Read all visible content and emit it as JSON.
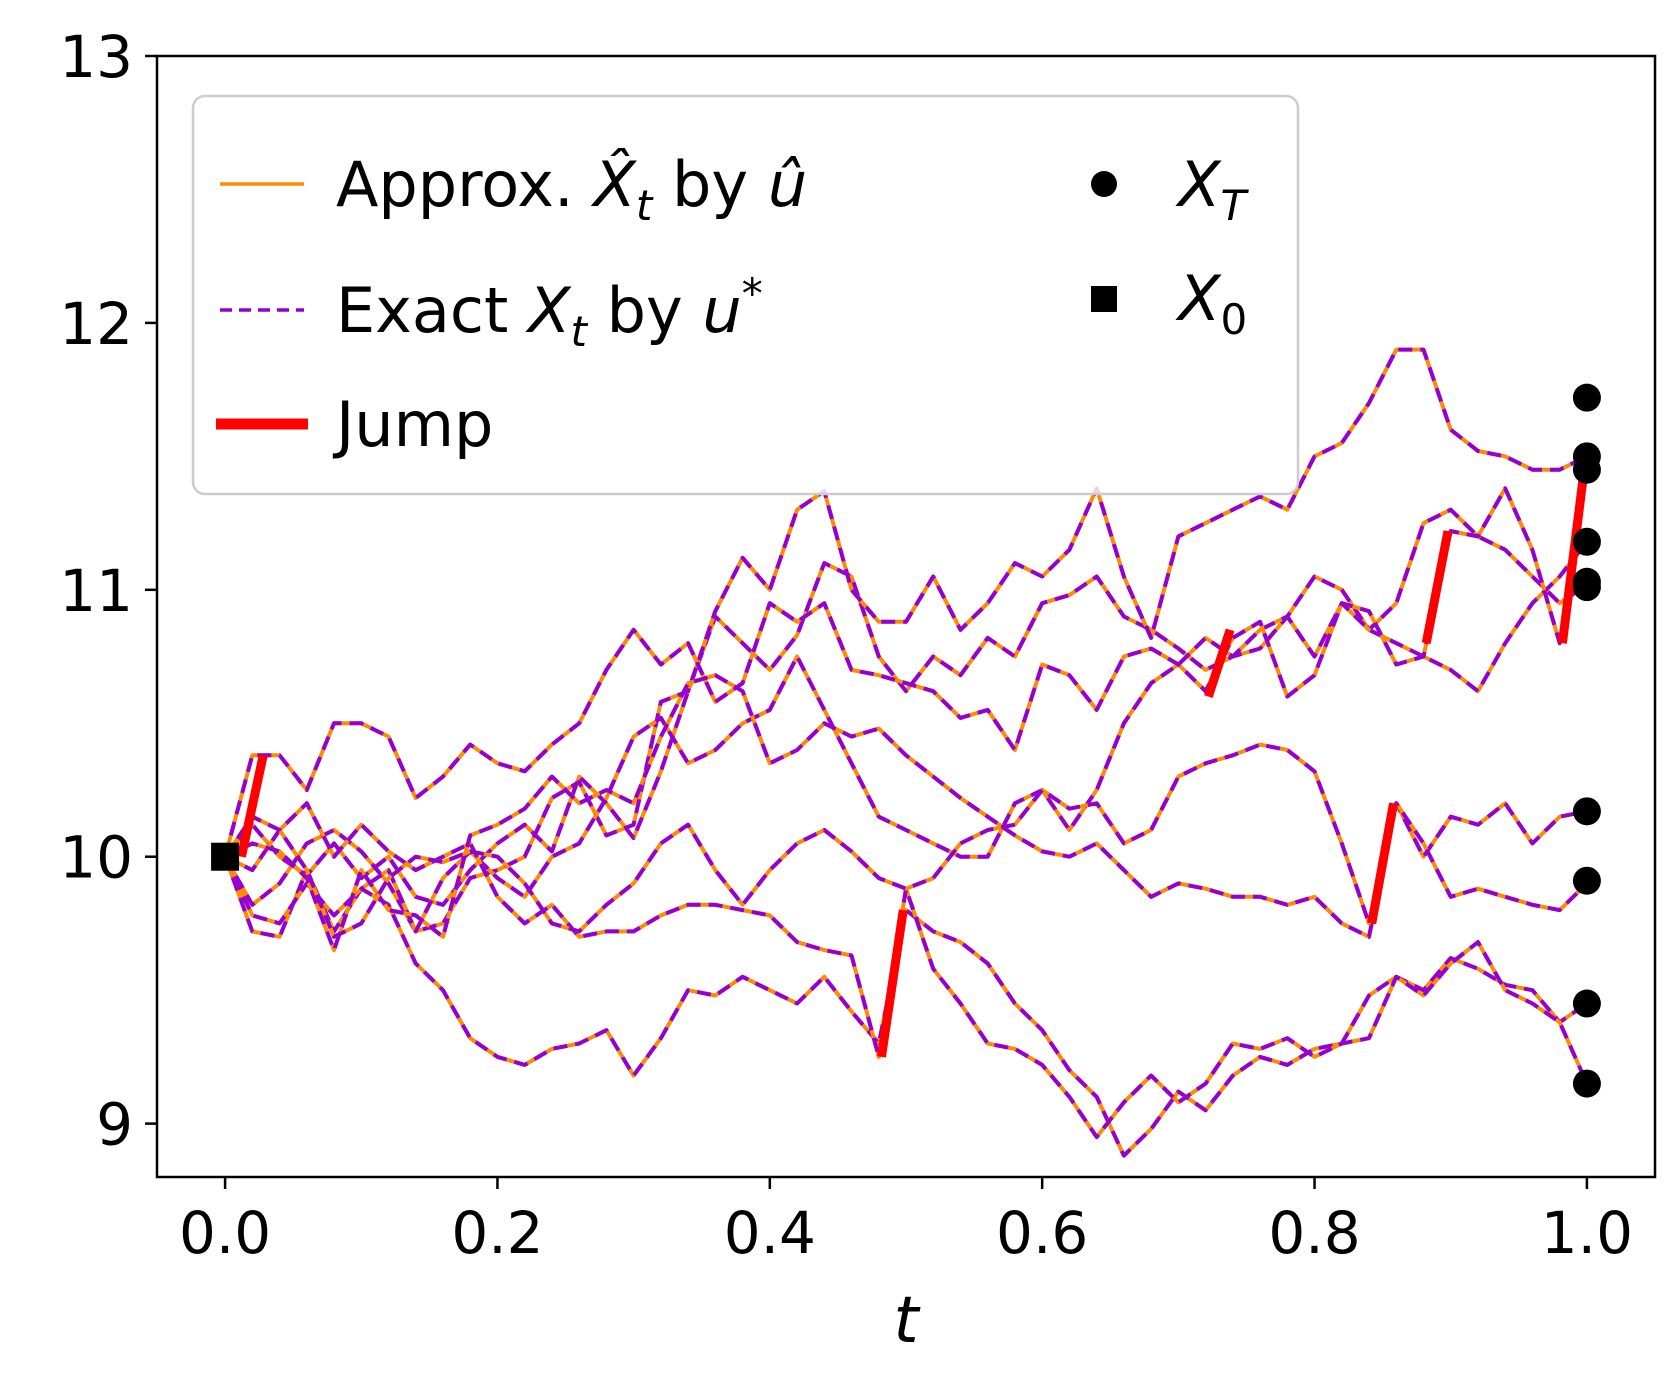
{
  "chart_data": {
    "type": "line",
    "xlabel": "t",
    "ylabel": "",
    "xlim": [
      -0.05,
      1.05
    ],
    "ylim": [
      8.8,
      13.0
    ],
    "x_ticks": [
      "0.0",
      "0.2",
      "0.4",
      "0.6",
      "0.8",
      "1.0"
    ],
    "y_ticks": [
      "9",
      "10",
      "11",
      "12",
      "13"
    ],
    "colors": {
      "approx": "#ff8c00",
      "exact": "#9400d3",
      "jump": "#ff0000",
      "marker": "#000000"
    },
    "legend": {
      "placement": "upper-left",
      "approx": {
        "prefix": "Approx. ",
        "symbol": "X̂",
        "sub": "t",
        "mid": " by ",
        "control": "û"
      },
      "exact": {
        "prefix": "Exact ",
        "symbol": "X",
        "sub": "t",
        "mid": " by ",
        "control": "u",
        "sup": "*"
      },
      "jump": {
        "label": "Jump"
      },
      "terminal": {
        "symbol": "X",
        "sub": "T"
      },
      "initial": {
        "symbol": "X",
        "sub": "0"
      }
    },
    "x": [
      0.0,
      0.02,
      0.04,
      0.06,
      0.08,
      0.1,
      0.12,
      0.14,
      0.16,
      0.18,
      0.2,
      0.22,
      0.24,
      0.26,
      0.28,
      0.3,
      0.32,
      0.34,
      0.36,
      0.38,
      0.4,
      0.42,
      0.44,
      0.46,
      0.48,
      0.5,
      0.52,
      0.54,
      0.56,
      0.58,
      0.6,
      0.62,
      0.64,
      0.66,
      0.68,
      0.7,
      0.72,
      0.74,
      0.76,
      0.78,
      0.8,
      0.82,
      0.84,
      0.86,
      0.88,
      0.9,
      0.92,
      0.94,
      0.96,
      0.98,
      1.0
    ],
    "series": [
      {
        "values": [
          10.0,
          10.12,
          10.0,
          9.93,
          10.05,
          9.92,
          10.0,
          9.85,
          9.82,
          9.95,
          10.05,
          10.12,
          10.02,
          10.3,
          10.2,
          10.07,
          10.32,
          10.62,
          10.9,
          10.8,
          10.7,
          10.83,
          11.1,
          11.05,
          10.75,
          10.62,
          10.75,
          10.68,
          10.82,
          10.75,
          10.95,
          10.98,
          11.05,
          10.9,
          10.85,
          10.78,
          10.7,
          10.75,
          10.78,
          10.9,
          11.05,
          11.0,
          10.85,
          10.95,
          11.25,
          11.3,
          11.2,
          11.15,
          11.05,
          10.95,
          11.02
        ]
      },
      {
        "values": [
          10.0,
          9.82,
          9.9,
          10.05,
          10.1,
          10.02,
          9.9,
          9.72,
          9.75,
          9.92,
          9.95,
          10.0,
          10.22,
          10.28,
          10.08,
          10.12,
          10.58,
          10.62,
          10.92,
          11.12,
          11.0,
          11.3,
          11.37,
          11.0,
          10.88,
          10.88,
          11.05,
          10.85,
          10.95,
          11.1,
          11.05,
          11.15,
          11.38,
          11.05,
          10.82,
          11.2,
          11.25,
          11.3,
          11.35,
          11.3,
          11.5,
          11.55,
          11.7,
          11.9,
          11.9,
          11.6,
          11.52,
          11.5,
          11.45,
          11.45,
          11.5
        ]
      },
      {
        "values": [
          10.0,
          9.72,
          9.7,
          9.95,
          9.72,
          9.88,
          9.95,
          9.72,
          9.92,
          10.02,
          9.92,
          9.85,
          10.0,
          10.05,
          10.22,
          10.45,
          10.52,
          10.35,
          10.4,
          10.5,
          10.55,
          10.75,
          10.55,
          10.35,
          10.15,
          10.1,
          10.05,
          10.0,
          10.0,
          10.2,
          10.25,
          10.1,
          10.25,
          10.5,
          10.65,
          10.72,
          10.82,
          10.75,
          10.85,
          10.9,
          10.75,
          10.95,
          10.85,
          10.8,
          10.75,
          10.7,
          10.62,
          10.8,
          10.95,
          11.05,
          11.18
        ]
      },
      {
        "values": [
          10.0,
          10.38,
          10.38,
          10.25,
          10.5,
          10.5,
          10.45,
          10.22,
          10.3,
          10.42,
          10.35,
          10.32,
          10.42,
          10.5,
          10.7,
          10.85,
          10.72,
          10.8,
          10.58,
          10.65,
          10.95,
          10.88,
          10.95,
          10.7,
          10.68,
          10.65,
          10.62,
          10.52,
          10.55,
          10.4,
          10.72,
          10.68,
          10.55,
          10.75,
          10.78,
          10.72,
          10.62,
          10.82,
          10.88,
          10.6,
          10.68,
          10.95,
          10.92,
          10.72,
          10.75,
          11.22,
          11.2,
          11.38,
          11.15,
          10.8,
          11.45
        ]
      },
      {
        "values": [
          10.0,
          9.78,
          9.75,
          9.9,
          9.78,
          9.88,
          9.82,
          9.6,
          9.5,
          9.32,
          9.25,
          9.22,
          9.28,
          9.3,
          9.35,
          9.18,
          9.32,
          9.5,
          9.48,
          9.55,
          9.5,
          9.45,
          9.55,
          9.42,
          9.3,
          9.8,
          9.72,
          9.68,
          9.6,
          9.45,
          9.35,
          9.2,
          9.1,
          8.88,
          8.98,
          9.12,
          9.05,
          9.18,
          9.25,
          9.22,
          9.28,
          9.3,
          9.48,
          9.55,
          9.5,
          9.62,
          9.58,
          9.52,
          9.5,
          9.38,
          9.45
        ]
      },
      {
        "values": [
          10.0,
          9.95,
          10.1,
          10.2,
          10.0,
          10.12,
          10.02,
          9.95,
          10.0,
          10.05,
          9.85,
          9.75,
          9.82,
          9.7,
          9.72,
          9.72,
          9.78,
          9.82,
          9.82,
          9.8,
          9.78,
          9.68,
          9.65,
          9.63,
          9.25,
          9.88,
          9.58,
          9.45,
          9.3,
          9.28,
          9.22,
          9.1,
          8.95,
          9.08,
          9.18,
          9.08,
          9.15,
          9.3,
          9.28,
          9.32,
          9.25,
          9.3,
          9.32,
          9.55,
          9.48,
          9.6,
          9.68,
          9.5,
          9.45,
          9.38,
          9.15
        ]
      },
      {
        "values": [
          10.0,
          10.05,
          10.02,
          9.92,
          9.65,
          9.95,
          9.8,
          9.78,
          9.7,
          10.08,
          10.12,
          10.18,
          10.3,
          10.2,
          10.25,
          10.2,
          10.45,
          10.65,
          10.68,
          10.62,
          10.35,
          10.4,
          10.5,
          10.45,
          10.48,
          10.38,
          10.3,
          10.22,
          10.15,
          10.08,
          10.02,
          10.0,
          10.05,
          9.95,
          9.85,
          9.9,
          9.88,
          9.85,
          9.85,
          9.82,
          9.85,
          9.75,
          9.7,
          10.2,
          10.0,
          10.15,
          10.12,
          10.2,
          10.05,
          10.15,
          10.17
        ]
      },
      {
        "values": [
          10.0,
          10.15,
          10.1,
          9.95,
          9.7,
          9.75,
          9.92,
          10.0,
          9.98,
          10.02,
          10.0,
          9.9,
          9.75,
          9.72,
          9.82,
          9.9,
          10.05,
          10.12,
          9.95,
          9.82,
          9.95,
          10.05,
          10.1,
          10.02,
          9.92,
          9.88,
          9.92,
          10.05,
          10.1,
          10.12,
          10.25,
          10.18,
          10.2,
          10.05,
          10.1,
          10.3,
          10.35,
          10.38,
          10.42,
          10.4,
          10.32,
          10.05,
          9.75,
          10.2,
          10.05,
          9.85,
          9.88,
          9.85,
          9.82,
          9.8,
          9.9
        ]
      }
    ],
    "jumps": [
      {
        "x": 0.02,
        "y0": 10.0,
        "y1": 10.38
      },
      {
        "x": 0.49,
        "y0": 9.25,
        "y1": 9.8
      },
      {
        "x": 0.73,
        "y0": 10.6,
        "y1": 10.85
      },
      {
        "x": 0.85,
        "y0": 9.75,
        "y1": 10.2
      },
      {
        "x": 0.89,
        "y0": 10.8,
        "y1": 11.22
      },
      {
        "x": 0.99,
        "y0": 10.8,
        "y1": 11.45
      }
    ],
    "initial_point": {
      "x": 0.0,
      "y": 10.0
    },
    "terminal_points": [
      {
        "x": 1.0,
        "y": 11.72
      },
      {
        "x": 1.0,
        "y": 11.5
      },
      {
        "x": 1.0,
        "y": 11.45
      },
      {
        "x": 1.0,
        "y": 11.18
      },
      {
        "x": 1.0,
        "y": 11.03
      },
      {
        "x": 1.0,
        "y": 11.01
      },
      {
        "x": 1.0,
        "y": 10.17
      },
      {
        "x": 1.0,
        "y": 9.91
      },
      {
        "x": 1.0,
        "y": 9.45
      },
      {
        "x": 1.0,
        "y": 9.15
      }
    ]
  }
}
